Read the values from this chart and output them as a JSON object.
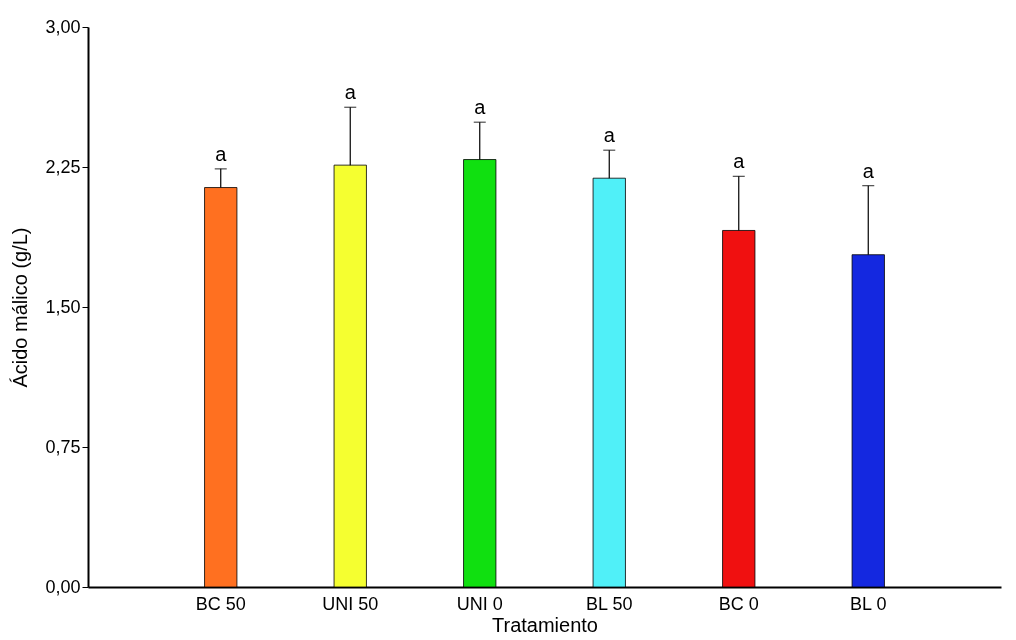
{
  "chart_data": {
    "type": "bar",
    "xlabel": "Tratamiento",
    "ylabel": "Ácido málico (g/L)",
    "categories": [
      "BC 50",
      "UNI 50",
      "UNI 0",
      "BL 50",
      "BC 0",
      "BL 0"
    ],
    "values": [
      2.14,
      2.26,
      2.29,
      2.19,
      1.91,
      1.78
    ],
    "colors": [
      "#ff7020",
      "#f5ff30",
      "#10e010",
      "#50f0f8",
      "#f01010",
      "#1428e0"
    ],
    "errors": [
      [
        2.14,
        2.24
      ],
      [
        2.26,
        2.57
      ],
      [
        2.29,
        2.49
      ],
      [
        2.19,
        2.34
      ],
      [
        1.91,
        2.2
      ],
      [
        1.78,
        2.15
      ]
    ],
    "ylim": [
      0,
      3
    ],
    "yticks": [
      {
        "value": 0,
        "label": "0,00"
      },
      {
        "value": 0.75,
        "label": "0,75"
      },
      {
        "value": 1.5,
        "label": "1,50"
      },
      {
        "value": 2.25,
        "label": "2,25"
      },
      {
        "value": 3,
        "label": "3,00"
      }
    ],
    "annotations": [
      {
        "text": "a",
        "x": "BC 50",
        "y": 2.24
      },
      {
        "text": "a",
        "x": "UNI 50",
        "y": 2.57
      },
      {
        "text": "a",
        "x": "UNI 0",
        "y": 2.49
      },
      {
        "text": "a",
        "x": "BL 50",
        "y": 2.34
      },
      {
        "text": "a",
        "x": "BC 0",
        "y": 2.2
      },
      {
        "text": "a",
        "x": "BL 0",
        "y": 2.15
      }
    ],
    "grid": false
  }
}
